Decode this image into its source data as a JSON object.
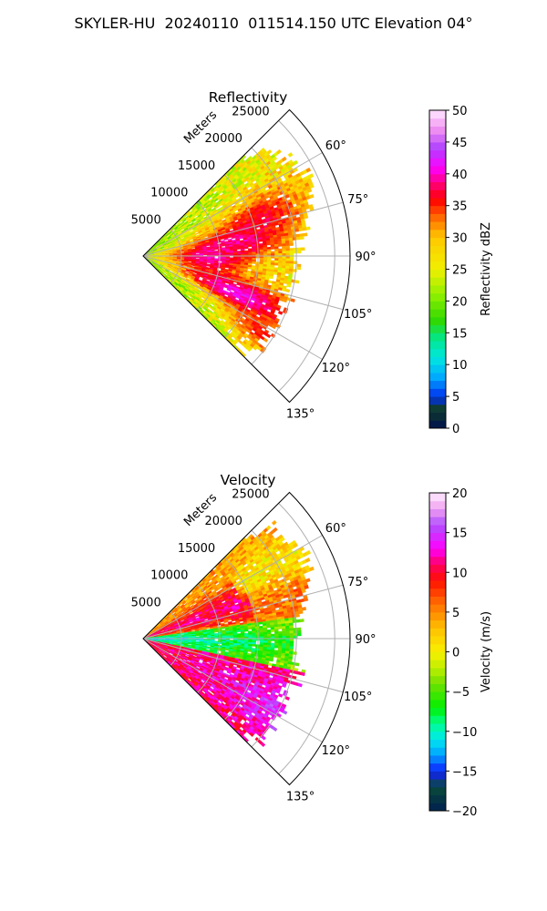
{
  "figure": {
    "suptitle": "SKYLER-HU  20240110  011514.150 UTC Elevation 04°"
  },
  "chart_data": [
    {
      "type": "heatmap",
      "projection": "polar-sector",
      "title": "Reflectivity",
      "radial_label": "Meters",
      "radial_ticks": [
        5000,
        10000,
        15000,
        20000,
        25000
      ],
      "radial_tick_labels": [
        "5000",
        "10000",
        "15000",
        "20000",
        "25000"
      ],
      "rmax": 27000,
      "azimuth_range_deg": [
        45,
        135
      ],
      "azimuth_ticks_deg": [
        60,
        75,
        90,
        105,
        120,
        135
      ],
      "azimuth_tick_labels": [
        "60°",
        "75°",
        "90°",
        "105°",
        "120°",
        "135°"
      ],
      "grid": true,
      "colorbar": {
        "label": "Reflectivity dBZ",
        "min": 0,
        "max": 50,
        "ticks": [
          0,
          5,
          10,
          15,
          20,
          25,
          30,
          35,
          40,
          45,
          50
        ],
        "tick_labels": [
          "0",
          "5",
          "10",
          "15",
          "20",
          "25",
          "30",
          "35",
          "40",
          "45",
          "50"
        ],
        "colormap": "NWSRef",
        "color_stops": [
          [
            0,
            "#001050"
          ],
          [
            3,
            "#103c28"
          ],
          [
            5,
            "#0030f0"
          ],
          [
            8,
            "#00a8ff"
          ],
          [
            11,
            "#00e6e0"
          ],
          [
            14,
            "#00e890"
          ],
          [
            17,
            "#30d800"
          ],
          [
            21,
            "#90f000"
          ],
          [
            25,
            "#f0f000"
          ],
          [
            30,
            "#ffc800"
          ],
          [
            33,
            "#ff7000"
          ],
          [
            36,
            "#ff0000"
          ],
          [
            38,
            "#ff0060"
          ],
          [
            41,
            "#ff00ff"
          ],
          [
            44,
            "#b040ff"
          ],
          [
            47,
            "#f090f0"
          ],
          [
            50,
            "#ffe8ff"
          ]
        ]
      },
      "features": [
        {
          "az": 72,
          "r": 0.62,
          "az_width": 8,
          "r_width": 0.16,
          "value": 36
        },
        {
          "az": 82,
          "r": 0.48,
          "az_width": 7,
          "r_width": 0.14,
          "value": 37
        },
        {
          "az": 92,
          "r": 0.33,
          "az_width": 10,
          "r_width": 0.14,
          "value": 34
        },
        {
          "az": 112,
          "r": 0.52,
          "az_width": 6,
          "r_width": 0.22,
          "value": 40
        },
        {
          "az": 123,
          "r": 0.66,
          "az_width": 5,
          "r_width": 0.12,
          "value": 35
        }
      ]
    },
    {
      "type": "heatmap",
      "projection": "polar-sector",
      "title": "Velocity",
      "radial_label": "Meters",
      "radial_ticks": [
        5000,
        10000,
        15000,
        20000,
        25000
      ],
      "radial_tick_labels": [
        "5000",
        "10000",
        "15000",
        "20000",
        "25000"
      ],
      "rmax": 27000,
      "azimuth_range_deg": [
        45,
        135
      ],
      "azimuth_ticks_deg": [
        60,
        75,
        90,
        105,
        120,
        135
      ],
      "azimuth_tick_labels": [
        "60°",
        "75°",
        "90°",
        "105°",
        "120°",
        "135°"
      ],
      "grid": true,
      "colorbar": {
        "label": "Velocity (m/s)",
        "min": -20,
        "max": 20,
        "ticks": [
          -20,
          -15,
          -10,
          -5,
          0,
          5,
          10,
          15,
          20
        ],
        "tick_labels": [
          "−20",
          "−15",
          "−10",
          "−5",
          "0",
          "5",
          "10",
          "15",
          "20"
        ],
        "colormap": "NWSVel",
        "color_stops": [
          [
            -20,
            "#002050"
          ],
          [
            -17,
            "#0a4a3a"
          ],
          [
            -15,
            "#1020ff"
          ],
          [
            -13,
            "#00a0ff"
          ],
          [
            -11,
            "#00e8f0"
          ],
          [
            -9,
            "#00ff90"
          ],
          [
            -7,
            "#00f000"
          ],
          [
            -4,
            "#70e000"
          ],
          [
            -2,
            "#c0f000"
          ],
          [
            0,
            "#f8f000"
          ],
          [
            3,
            "#ffc000"
          ],
          [
            6,
            "#ff7000"
          ],
          [
            9,
            "#ff1000"
          ],
          [
            11,
            "#ff0060"
          ],
          [
            13,
            "#ff00ff"
          ],
          [
            16,
            "#b050ff"
          ],
          [
            18,
            "#f0a0f0"
          ],
          [
            20,
            "#ffeeff"
          ]
        ]
      }
    }
  ]
}
